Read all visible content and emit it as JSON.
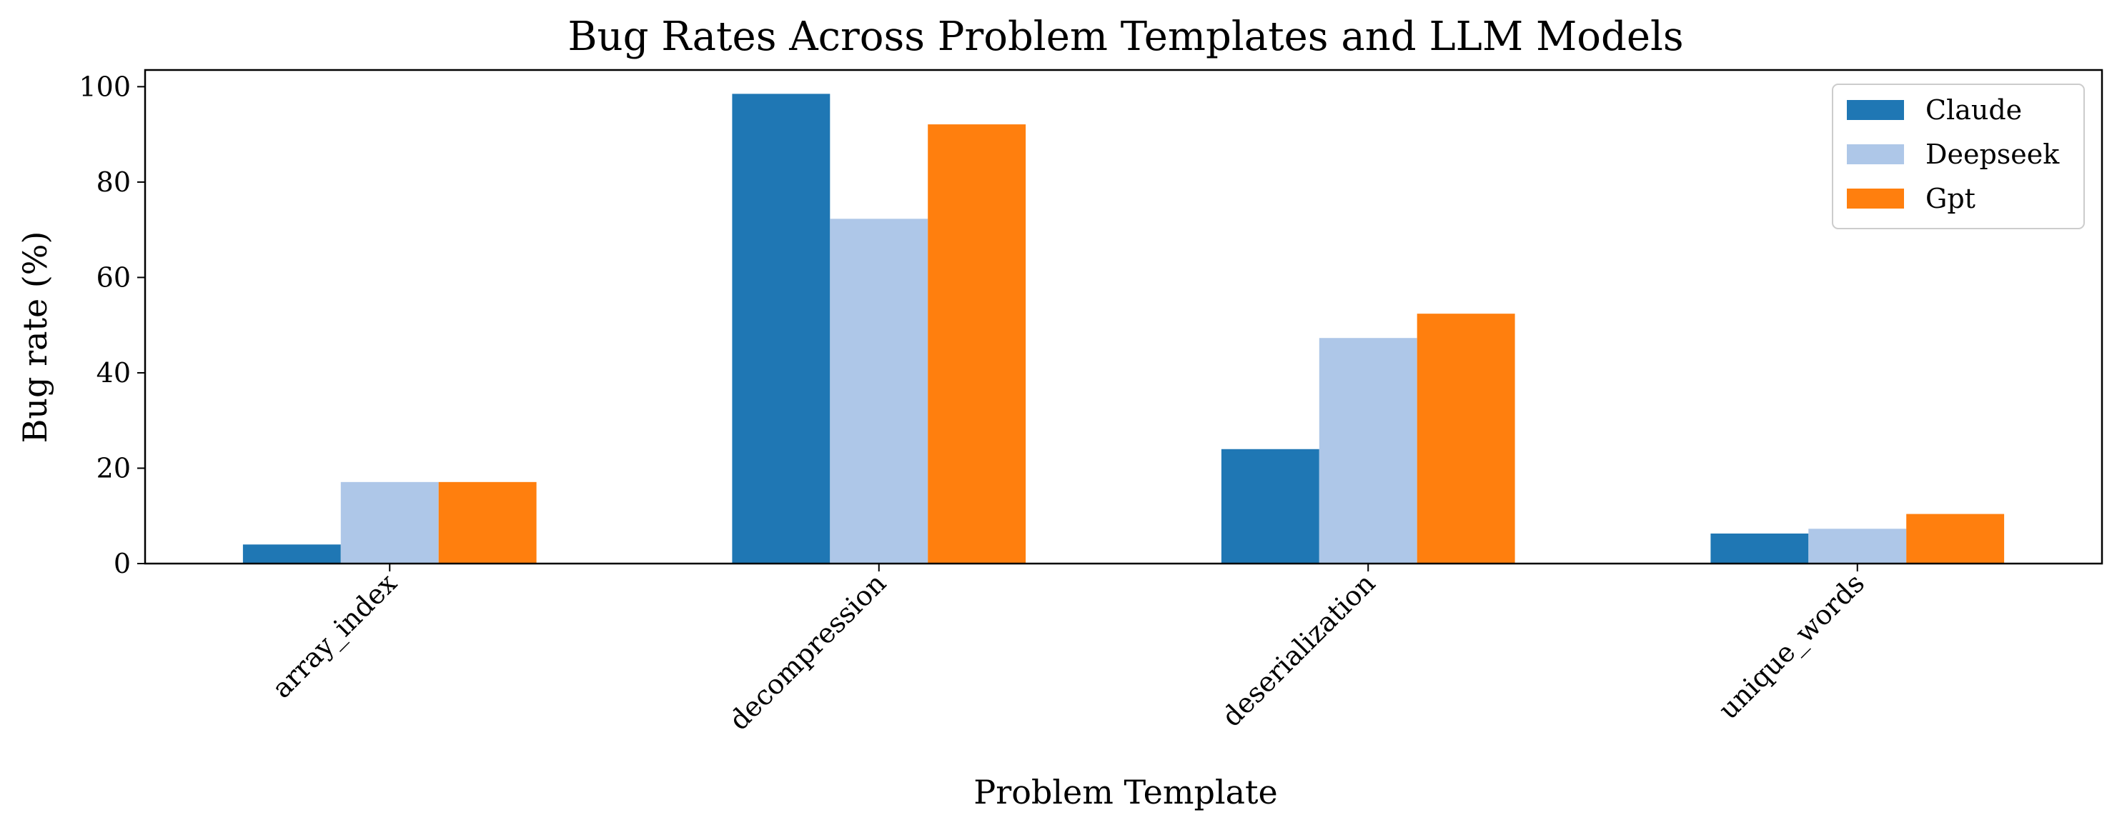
{
  "chart_data": {
    "type": "bar",
    "title": "Bug Rates Across Problem Templates and LLM Models",
    "xlabel": "Problem Template",
    "ylabel": "Bug rate (%)",
    "categories": [
      "array_index",
      "decompression",
      "deserialization",
      "unique_words"
    ],
    "series": [
      {
        "name": "Claude",
        "color": "#1f77b4",
        "values": [
          4.0,
          98.5,
          24.0,
          6.3
        ]
      },
      {
        "name": "Deepseek",
        "color": "#aec7e8",
        "values": [
          17.1,
          72.3,
          47.3,
          7.3
        ]
      },
      {
        "name": "Gpt",
        "color": "#ff7f0e",
        "values": [
          17.1,
          92.1,
          52.4,
          10.4
        ]
      }
    ],
    "ylim": [
      0,
      103.5
    ],
    "yticks": [
      0,
      20,
      40,
      60,
      80,
      100
    ],
    "grid": false,
    "legend_position": "top-right"
  }
}
